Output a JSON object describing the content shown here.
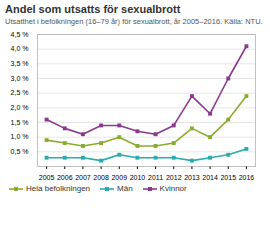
{
  "chart_data": {
    "type": "line",
    "title": "Andel som utsatts för sexualbrott",
    "subtitle": "Utsatthet i befolkningen (16–79 år) för sexualbrott, år 2005–2016. Källa: NTU.",
    "x": [
      2005,
      2006,
      2007,
      2008,
      2009,
      2010,
      2011,
      2012,
      2013,
      2014,
      2015,
      2016
    ],
    "series": [
      {
        "name": "Hela befolkningen",
        "color": "#8aac2e",
        "values": [
          0.9,
          0.8,
          0.7,
          0.8,
          1.0,
          0.7,
          0.7,
          0.8,
          1.3,
          1.0,
          1.6,
          2.4
        ]
      },
      {
        "name": "Män",
        "color": "#2aacac",
        "values": [
          0.3,
          0.3,
          0.3,
          0.2,
          0.4,
          0.3,
          0.3,
          0.3,
          0.2,
          0.3,
          0.4,
          0.6
        ]
      },
      {
        "name": "Kvinnor",
        "color": "#8b3a8b",
        "values": [
          1.6,
          1.3,
          1.1,
          1.4,
          1.4,
          1.2,
          1.1,
          1.4,
          2.4,
          1.8,
          3.0,
          4.1
        ]
      }
    ],
    "xlim": [
      2004.5,
      2016.5
    ],
    "xticks": [
      2005,
      2006,
      2007,
      2008,
      2009,
      2010,
      2011,
      2012,
      2013,
      2014,
      2015,
      2016
    ],
    "ylim": [
      0,
      4.5
    ],
    "yticks": [
      {
        "value": 0.5,
        "label": "0,5 %"
      },
      {
        "value": 1.0,
        "label": "1,0 %"
      },
      {
        "value": 1.5,
        "label": "1,5 %"
      },
      {
        "value": 2.0,
        "label": "2,0 %"
      },
      {
        "value": 2.5,
        "label": "2,5 %"
      },
      {
        "value": 3.0,
        "label": "3,0 %"
      },
      {
        "value": 3.5,
        "label": "3,5 %"
      },
      {
        "value": 4.0,
        "label": "4,0 %"
      },
      {
        "value": 4.5,
        "label": "4,5 %"
      }
    ],
    "grid": true,
    "legend": "bottom",
    "marker": "square"
  }
}
